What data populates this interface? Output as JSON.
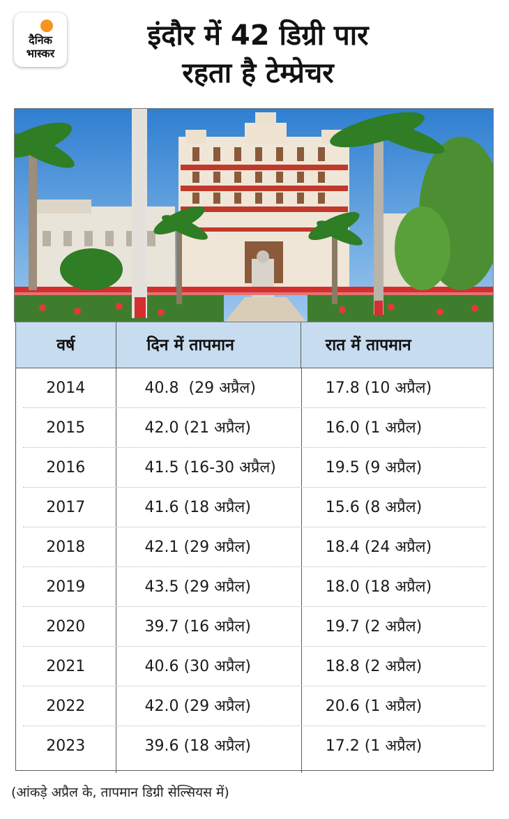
{
  "logo": {
    "line1": "दैनिक",
    "line2": "भास्कर"
  },
  "title": {
    "line1": "इंदौर में 42 डिग्री पार",
    "line2": "रहता है टेम्प्रेचर"
  },
  "table": {
    "headers": [
      "वर्ष",
      "दिन में तापमान",
      "रात में तापमान"
    ],
    "rows": [
      {
        "year": "2014",
        "day": "40.8  (29 अप्रैल)",
        "night": "17.8 (10 अप्रैल)"
      },
      {
        "year": "2015",
        "day": "42.0 (21 अप्रैल)",
        "night": "16.0 (1 अप्रैल)"
      },
      {
        "year": "2016",
        "day": "41.5 (16-30 अप्रैल)",
        "night": "19.5 (9 अप्रैल)"
      },
      {
        "year": "2017",
        "day": "41.6 (18 अप्रैल)",
        "night": "15.6 (8 अप्रैल)"
      },
      {
        "year": "2018",
        "day": "42.1 (29 अप्रैल)",
        "night": "18.4 (24 अप्रैल)"
      },
      {
        "year": "2019",
        "day": "43.5 (29 अप्रैल)",
        "night": "18.0 (18 अप्रैल)"
      },
      {
        "year": "2020",
        "day": "39.7 (16 अप्रैल)",
        "night": "19.7 (2 अप्रैल)"
      },
      {
        "year": "2021",
        "day": "40.6 (30 अप्रैल)",
        "night": "18.8 (2 अप्रैल)"
      },
      {
        "year": "2022",
        "day": "42.0 (29 अप्रैल)",
        "night": "20.6 (1 अप्रैल)"
      },
      {
        "year": "2023",
        "day": "39.6 (18 अप्रैल)",
        "night": "17.2 (1 अप्रैल)"
      }
    ]
  },
  "footnote": "(आंकड़े अप्रैल के, तापमान डिग्री सेल्सियस में)",
  "colors": {
    "header_bg": "#c7dcef",
    "logo_sun": "#f7941d",
    "border": "#5b5b5b"
  }
}
